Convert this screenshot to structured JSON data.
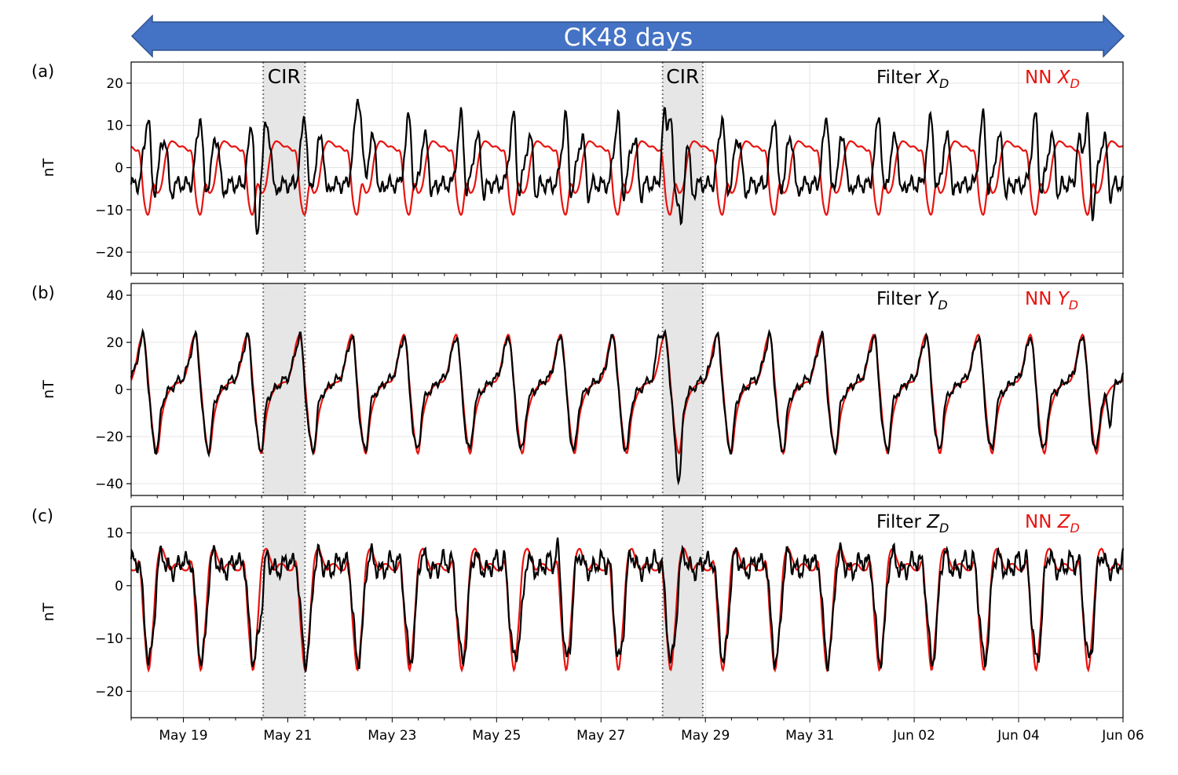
{
  "banner": {
    "label": "CK48 days",
    "color": "#4472c4"
  },
  "x_ticks": [
    "May 19",
    "May 21",
    "May 23",
    "May 25",
    "May 27",
    "May 29",
    "May 31",
    "Jun 02",
    "Jun 04",
    "Jun 06"
  ],
  "cir_label": "CIR",
  "colors": {
    "filter": "#000000",
    "nn": "#e8130f",
    "cir_band": "#e6e6e6"
  },
  "chart_data": [
    {
      "type": "line",
      "panel_label": "(a)",
      "ylabel": "nT",
      "ylim": [
        -25,
        25
      ],
      "yticks": [
        -20,
        -10,
        0,
        10,
        20
      ],
      "xlim_days": [
        0,
        19
      ],
      "x_start": "May 18",
      "legend": {
        "filter_prefix": "Filter ",
        "nn_prefix": "NN ",
        "var": "X",
        "sub": "D"
      },
      "cir_intervals_days": [
        [
          2.53,
          3.33
        ],
        [
          10.18,
          10.95
        ]
      ],
      "daily_pattern": {
        "filter_keys": [
          -4,
          -4,
          -3,
          5,
          12,
          -5,
          -2,
          5,
          6,
          -6,
          -4,
          -4
        ],
        "nn_keys": [
          5,
          4,
          3,
          -8,
          -11,
          -4,
          -6,
          -4,
          3,
          6,
          6,
          5
        ]
      },
      "events": [
        {
          "day": 2.4,
          "filter_delta": -14,
          "nn_delta": 0
        },
        {
          "day": 2.55,
          "filter_delta": 6,
          "nn_delta": 0
        },
        {
          "day": 4.4,
          "filter_delta": 14,
          "nn_delta": 0
        },
        {
          "day": 10.2,
          "filter_delta": 12,
          "nn_delta": 0
        },
        {
          "day": 10.55,
          "filter_delta": -16,
          "nn_delta": 0
        },
        {
          "day": 18.15,
          "filter_delta": 10,
          "nn_delta": 0
        },
        {
          "day": 18.4,
          "filter_delta": -6,
          "nn_delta": 0
        }
      ]
    },
    {
      "type": "line",
      "panel_label": "(b)",
      "ylabel": "nT",
      "ylim": [
        -45,
        45
      ],
      "yticks": [
        -40,
        -20,
        0,
        20,
        40
      ],
      "xlim_days": [
        0,
        19
      ],
      "x_start": "May 18",
      "legend": {
        "filter_prefix": "Filter ",
        "nn_prefix": "NN ",
        "var": "Y",
        "sub": "D"
      },
      "cir_intervals_days": [
        [
          2.53,
          3.33
        ],
        [
          10.18,
          10.95
        ]
      ],
      "daily_pattern": {
        "filter_keys": [
          5,
          10,
          18,
          22,
          0,
          -20,
          -25,
          -8,
          -2,
          0,
          2,
          4
        ],
        "nn_keys": [
          4,
          10,
          20,
          22,
          2,
          -18,
          -27,
          -12,
          -4,
          0,
          2,
          3
        ]
      },
      "events": [
        {
          "day": 10.1,
          "filter_delta": 12,
          "nn_delta": 0
        },
        {
          "day": 10.5,
          "filter_delta": -14,
          "nn_delta": 0
        },
        {
          "day": 18.75,
          "filter_delta": -14,
          "nn_delta": 0
        }
      ]
    },
    {
      "type": "line",
      "panel_label": "(c)",
      "ylabel": "nT",
      "ylim": [
        -25,
        15
      ],
      "yticks": [
        -20,
        -10,
        0,
        10
      ],
      "xlim_days": [
        0,
        19
      ],
      "x_start": "May 18",
      "legend": {
        "filter_prefix": "Filter ",
        "nn_prefix": "NN ",
        "var": "Z",
        "sub": "D"
      },
      "cir_intervals_days": [
        [
          2.53,
          3.33
        ],
        [
          10.18,
          10.95
        ]
      ],
      "daily_pattern": {
        "filter_keys": [
          5,
          4,
          4,
          -6,
          -14,
          -10,
          2,
          6,
          4,
          3,
          3,
          4
        ],
        "nn_keys": [
          3,
          3,
          4,
          -8,
          -16,
          -8,
          4,
          7,
          5,
          3,
          4,
          4
        ]
      },
      "events": [
        {
          "day": 2.5,
          "filter_delta": -6,
          "nn_delta": 0
        },
        {
          "day": 7.5,
          "filter_delta": -6,
          "nn_delta": 0
        },
        {
          "day": 8.2,
          "filter_delta": 4,
          "nn_delta": 0
        }
      ]
    }
  ]
}
